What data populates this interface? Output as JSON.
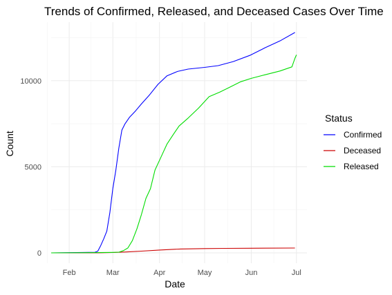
{
  "chart_data": {
    "type": "line",
    "title": "Trends of Confirmed, Released, and Deceased Cases Over Time",
    "xlabel": "Date",
    "ylabel": "Count",
    "x_ticks": [
      "Feb",
      "Mar",
      "Apr",
      "May",
      "Jun",
      "Jul"
    ],
    "x_tick_dates": [
      "2020-02-01",
      "2020-03-01",
      "2020-04-01",
      "2020-05-01",
      "2020-06-01",
      "2020-07-01"
    ],
    "xlim": [
      "2020-01-20",
      "2020-07-08"
    ],
    "y_ticks": [
      0,
      5000,
      10000
    ],
    "ylim": [
      -600,
      13400
    ],
    "grid": true,
    "legend": {
      "title": "Status",
      "position": "right"
    },
    "series": [
      {
        "name": "Confirmed",
        "color": "#0000ff",
        "points": [
          [
            "2020-01-20",
            1
          ],
          [
            "2020-02-10",
            27
          ],
          [
            "2020-02-18",
            31
          ],
          [
            "2020-02-20",
            104
          ],
          [
            "2020-02-22",
            433
          ],
          [
            "2020-02-24",
            833
          ],
          [
            "2020-02-26",
            1261
          ],
          [
            "2020-02-28",
            2337
          ],
          [
            "2020-03-01",
            3736
          ],
          [
            "2020-03-03",
            4812
          ],
          [
            "2020-03-05",
            6088
          ],
          [
            "2020-03-07",
            7134
          ],
          [
            "2020-03-09",
            7478
          ],
          [
            "2020-03-12",
            7869
          ],
          [
            "2020-03-16",
            8236
          ],
          [
            "2020-03-20",
            8652
          ],
          [
            "2020-03-25",
            9137
          ],
          [
            "2020-03-31",
            9786
          ],
          [
            "2020-04-06",
            10284
          ],
          [
            "2020-04-13",
            10537
          ],
          [
            "2020-04-20",
            10674
          ],
          [
            "2020-05-01",
            10774
          ],
          [
            "2020-05-10",
            10874
          ],
          [
            "2020-05-20",
            11110
          ],
          [
            "2020-05-31",
            11468
          ],
          [
            "2020-06-10",
            11902
          ],
          [
            "2020-06-20",
            12306
          ],
          [
            "2020-06-30",
            12800
          ]
        ]
      },
      {
        "name": "Deceased",
        "color": "#cc0000",
        "points": [
          [
            "2020-01-20",
            0
          ],
          [
            "2020-02-20",
            1
          ],
          [
            "2020-03-01",
            20
          ],
          [
            "2020-03-10",
            54
          ],
          [
            "2020-03-20",
            102
          ],
          [
            "2020-04-01",
            165
          ],
          [
            "2020-04-15",
            225
          ],
          [
            "2020-05-01",
            250
          ],
          [
            "2020-05-15",
            262
          ],
          [
            "2020-06-01",
            272
          ],
          [
            "2020-06-30",
            282
          ]
        ]
      },
      {
        "name": "Released",
        "color": "#00dd00",
        "points": [
          [
            "2020-01-20",
            0
          ],
          [
            "2020-02-20",
            16
          ],
          [
            "2020-03-01",
            30
          ],
          [
            "2020-03-05",
            41
          ],
          [
            "2020-03-08",
            130
          ],
          [
            "2020-03-11",
            288
          ],
          [
            "2020-03-14",
            714
          ],
          [
            "2020-03-17",
            1401
          ],
          [
            "2020-03-20",
            2233
          ],
          [
            "2020-03-23",
            3166
          ],
          [
            "2020-03-26",
            3730
          ],
          [
            "2020-03-29",
            4811
          ],
          [
            "2020-04-02",
            5567
          ],
          [
            "2020-04-06",
            6325
          ],
          [
            "2020-04-10",
            6854
          ],
          [
            "2020-04-14",
            7368
          ],
          [
            "2020-04-20",
            7829
          ],
          [
            "2020-04-27",
            8411
          ],
          [
            "2020-05-04",
            9072
          ],
          [
            "2020-05-11",
            9333
          ],
          [
            "2020-05-18",
            9632
          ],
          [
            "2020-05-25",
            9938
          ],
          [
            "2020-06-01",
            10135
          ],
          [
            "2020-06-10",
            10340
          ],
          [
            "2020-06-20",
            10560
          ],
          [
            "2020-06-28",
            10800
          ],
          [
            "2020-06-30",
            11300
          ],
          [
            "2020-07-01",
            11500
          ]
        ]
      }
    ]
  }
}
